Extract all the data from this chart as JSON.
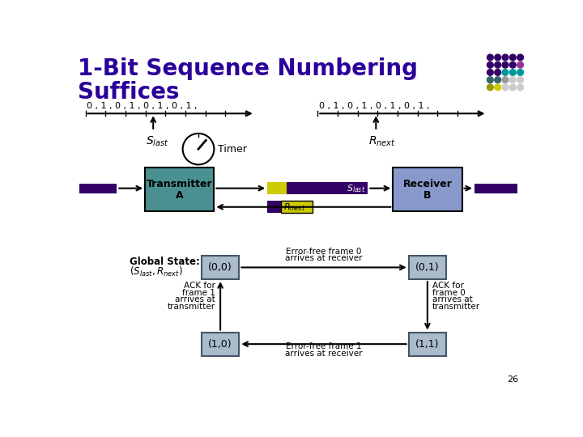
{
  "title_line1": "1-Bit Sequence Numbering",
  "title_line2": "Suffices",
  "title_color": "#2B0099",
  "bg_color": "#FFFFFF",
  "sequence_label": "0 , 1 , 0 , 1 , 0 , 1 , 0 , 1 ,",
  "transmitter_color": "#4A9090",
  "receiver_color": "#8899CC",
  "frame_dark": "#330066",
  "frame_yellow": "#CCCC00",
  "state_box_color": "#AABBCC",
  "state_box_edge": "#445566",
  "slide_num": "26",
  "dot_colors": [
    [
      "#330066",
      "#330066",
      "#330066",
      "#330066",
      "#330066"
    ],
    [
      "#330066",
      "#330066",
      "#330066",
      "#330066",
      "#993399"
    ],
    [
      "#330066",
      "#330066",
      "#009999",
      "#009999",
      "#009999"
    ],
    [
      "#336666",
      "#336666",
      "#999999",
      "#CCCCCC",
      "#CCCCCC"
    ],
    [
      "#999900",
      "#CCCC00",
      "#CCCCCC",
      "#CCCCCC",
      "#CCCCCC"
    ]
  ]
}
